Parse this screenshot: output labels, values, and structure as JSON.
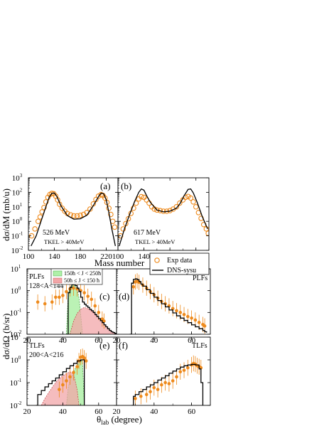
{
  "chart_data": [
    {
      "panel": "(a)",
      "type": "line",
      "xlim": [
        100,
        238
      ],
      "ylim_log10": [
        -2,
        3
      ],
      "ylabel": "dσ/dM (mb/u)",
      "xticks": [
        "100",
        "140",
        "180",
        "220"
      ],
      "yticks_exp": [
        "-2",
        "-1",
        "0",
        "1",
        "2",
        "3"
      ],
      "annotations": [
        "526 MeV",
        "TKEL > 40MeV"
      ],
      "series": [
        {
          "name": "DNS-sysu",
          "style": "line",
          "x": [
            104,
            112,
            120,
            128,
            132,
            136,
            140,
            144,
            150,
            160,
            170,
            180,
            190,
            200,
            208,
            212,
            216,
            220,
            224,
            228,
            234
          ],
          "y": [
            0.02,
            0.1,
            1.2,
            14,
            45,
            85,
            90,
            50,
            12,
            2.5,
            1.4,
            1.5,
            2.6,
            12,
            50,
            88,
            80,
            30,
            4,
            0.4,
            0.02
          ]
        },
        {
          "name": "Exp data",
          "style": "circle",
          "x": [
            105,
            110,
            115,
            118,
            121,
            124,
            127,
            130,
            133,
            136,
            139,
            142,
            145,
            148,
            152,
            156,
            160,
            165,
            170,
            175,
            180,
            185,
            190,
            195,
            200,
            204,
            208,
            212,
            215,
            218,
            221,
            224,
            227,
            230,
            233
          ],
          "y": [
            0.1,
            0.3,
            1.0,
            2.0,
            4.5,
            9,
            22,
            45,
            70,
            85,
            80,
            55,
            30,
            15,
            8,
            5,
            3.5,
            2.8,
            2.4,
            2.4,
            2.6,
            3,
            4,
            7,
            16,
            32,
            55,
            70,
            60,
            40,
            20,
            8,
            3,
            1.0,
            0.4
          ]
        }
      ]
    },
    {
      "panel": "(b)",
      "type": "line",
      "xlim": [
        100,
        240
      ],
      "ylim_log10": [
        -2,
        3
      ],
      "xticks": [
        "100",
        "140",
        "180",
        "220"
      ],
      "annotations": [
        "617 MeV",
        "TKEL > 40MeV"
      ],
      "series": [
        {
          "name": "DNS-sysu",
          "style": "line",
          "x": [
            102,
            110,
            118,
            126,
            132,
            136,
            140,
            144,
            150,
            160,
            170,
            180,
            190,
            196,
            202,
            208,
            212,
            216,
            222,
            230,
            238
          ],
          "y": [
            0.02,
            0.3,
            3,
            25,
            100,
            170,
            140,
            60,
            20,
            6,
            4.5,
            5,
            8,
            18,
            60,
            160,
            170,
            90,
            20,
            2,
            0.3
          ]
        },
        {
          "name": "Exp data",
          "style": "circle",
          "x": [
            104,
            108,
            112,
            116,
            120,
            124,
            128,
            132,
            136,
            140,
            144,
            148,
            152,
            156,
            160,
            165,
            170,
            175,
            180,
            185,
            190,
            195,
            200,
            204,
            208,
            212,
            216,
            220,
            224,
            228,
            232,
            236,
            239
          ],
          "y": [
            0.1,
            0.3,
            0.7,
            1.5,
            3.5,
            8,
            18,
            35,
            50,
            45,
            30,
            18,
            10,
            7,
            6,
            5.5,
            5,
            5,
            5.5,
            7,
            10,
            18,
            30,
            45,
            52,
            40,
            22,
            10,
            4,
            1.6,
            0.6,
            0.3,
            0.15
          ]
        }
      ]
    },
    {
      "panel": "(c)",
      "type": "area",
      "xlim": [
        20,
        70
      ],
      "ylim_log10": [
        -2,
        1
      ],
      "ylabel": "dσ/dΩ (b/sr)",
      "xticks": [
        "20",
        "40",
        "60"
      ],
      "yticks_exp": [
        "-2",
        "-1",
        "0",
        "1"
      ],
      "annotations": [
        "PLFs",
        "128<A<144"
      ],
      "series": [
        {
          "name": "DNS-sysu",
          "style": "step",
          "x": [
            42,
            43,
            44,
            45,
            46,
            47,
            48,
            49,
            50,
            51,
            52,
            53,
            54,
            55,
            56,
            57,
            58,
            59,
            60,
            61,
            62,
            63,
            64,
            65,
            66,
            67,
            68,
            69,
            70
          ],
          "y": [
            0.01,
            0.8,
            1.4,
            1.9,
            1.9,
            1.7,
            1.3,
            0.9,
            0.5,
            0.3,
            0.24,
            0.2,
            0.17,
            0.14,
            0.12,
            0.1,
            0.08,
            0.065,
            0.052,
            0.042,
            0.034,
            0.027,
            0.022,
            0.018,
            0.015,
            0.013,
            0.012,
            0.011,
            0.01
          ]
        },
        {
          "name": "150ħ < J < 250ħ",
          "style": "fill-green",
          "x": [
            42,
            43,
            44,
            45,
            46,
            47,
            48,
            49,
            50,
            51
          ],
          "y": [
            0.01,
            0.7,
            1.3,
            1.8,
            1.8,
            1.6,
            1.1,
            0.5,
            0.08,
            0.01
          ]
        },
        {
          "name": "50ħ ≤ J < 150 ħ",
          "style": "fill-red",
          "x": [
            44,
            46,
            48,
            50,
            52,
            54,
            56,
            58,
            60,
            62,
            64,
            66,
            68,
            70
          ],
          "y": [
            0.01,
            0.04,
            0.09,
            0.14,
            0.17,
            0.15,
            0.12,
            0.08,
            0.055,
            0.035,
            0.024,
            0.017,
            0.012,
            0.01
          ]
        },
        {
          "name": "Exp data",
          "style": "errorbar",
          "x": [
            26,
            30,
            34,
            36,
            38,
            40,
            42,
            44,
            46,
            48,
            50,
            52,
            54,
            56,
            58,
            60,
            62,
            63
          ],
          "y": [
            0.3,
            0.25,
            0.3,
            0.5,
            0.5,
            0.6,
            0.9,
            1.2,
            1.3,
            1.2,
            1.0,
            0.8,
            0.55,
            0.4,
            0.2,
            0.1,
            0.05,
            0.04
          ]
        }
      ]
    },
    {
      "panel": "(d)",
      "type": "area",
      "xlim": [
        20,
        70
      ],
      "ylim_log10": [
        -2,
        1
      ],
      "xticks": [
        "20",
        "40",
        "60"
      ],
      "annotations": [
        "PLFs"
      ],
      "series": [
        {
          "name": "DNS-sysu",
          "style": "step",
          "x": [
            27,
            28,
            29,
            30,
            31,
            32,
            33,
            34,
            36,
            38,
            40,
            42,
            44,
            46,
            48,
            50,
            52,
            54,
            56,
            58,
            60,
            62,
            64,
            66,
            67,
            68
          ],
          "y": [
            0.01,
            2.2,
            3.3,
            3.5,
            3.2,
            2.6,
            2.0,
            1.6,
            1.1,
            0.75,
            0.5,
            0.35,
            0.25,
            0.18,
            0.13,
            0.095,
            0.07,
            0.055,
            0.043,
            0.034,
            0.027,
            0.022,
            0.018,
            0.015,
            0.013,
            0.012
          ]
        },
        {
          "name": "Exp data",
          "style": "errorbar",
          "x": [
            29,
            30,
            31,
            32,
            34,
            36,
            38,
            40,
            42,
            44,
            46,
            48,
            50,
            52,
            54,
            56,
            58,
            60,
            62,
            64,
            66,
            67
          ],
          "y": [
            1.5,
            2.5,
            2.8,
            2.4,
            1.8,
            1.3,
            0.9,
            0.65,
            0.45,
            0.32,
            0.25,
            0.2,
            0.15,
            0.12,
            0.1,
            0.08,
            0.065,
            0.055,
            0.045,
            0.035,
            0.028,
            0.024
          ]
        }
      ]
    },
    {
      "panel": "(e)",
      "type": "area",
      "xlim": [
        20,
        70
      ],
      "ylim_log10": [
        -2,
        1
      ],
      "ylabel": "dσ/dΩ (b/sr)",
      "xticks": [
        "20",
        "40",
        "60"
      ],
      "yticks_exp": [
        "-2",
        "-1",
        "0",
        "1"
      ],
      "annotations": [
        "TLFs",
        "200<A<216"
      ],
      "series": [
        {
          "name": "DNS-sysu",
          "style": "step",
          "x": [
            25,
            26,
            28,
            30,
            32,
            34,
            36,
            38,
            40,
            42,
            44,
            46,
            48,
            50,
            51,
            52
          ],
          "y": [
            0.01,
            0.03,
            0.045,
            0.065,
            0.09,
            0.12,
            0.16,
            0.22,
            0.3,
            0.42,
            0.55,
            0.7,
            0.9,
            1.0,
            1.0,
            0.01
          ]
        },
        {
          "name": "150ħ < J < 250ħ",
          "style": "fill-green",
          "x": [
            42,
            43,
            44,
            46,
            48,
            50,
            51,
            52
          ],
          "y": [
            0.01,
            0.06,
            0.12,
            0.3,
            0.6,
            0.9,
            0.95,
            0.01
          ]
        },
        {
          "name": "50ħ ≤ J < 150 ħ",
          "style": "fill-red",
          "x": [
            28,
            30,
            32,
            34,
            36,
            38,
            40,
            42,
            44,
            46,
            48,
            49
          ],
          "y": [
            0.01,
            0.02,
            0.035,
            0.06,
            0.1,
            0.15,
            0.2,
            0.25,
            0.3,
            0.25,
            0.05,
            0.01
          ]
        },
        {
          "name": "Exp data",
          "style": "errorbar",
          "x": [
            38,
            40,
            42,
            44,
            46,
            48,
            49,
            50,
            51,
            52,
            53
          ],
          "y": [
            0.05,
            0.08,
            0.12,
            0.18,
            0.28,
            0.5,
            0.9,
            1.3,
            1.4,
            1.2,
            0.9
          ]
        }
      ]
    },
    {
      "panel": "(f)",
      "type": "area",
      "xlim": [
        20,
        70
      ],
      "ylim_log10": [
        -2,
        1
      ],
      "xticks": [
        "20",
        "40",
        "60"
      ],
      "annotations": [
        "TLFs"
      ],
      "series": [
        {
          "name": "DNS-sysu",
          "style": "step",
          "x": [
            28,
            29,
            30,
            32,
            34,
            36,
            38,
            40,
            42,
            44,
            46,
            48,
            50,
            52,
            54,
            56,
            58,
            60,
            62,
            64,
            65,
            66
          ],
          "y": [
            0.01,
            0.025,
            0.03,
            0.04,
            0.05,
            0.065,
            0.08,
            0.1,
            0.13,
            0.16,
            0.2,
            0.26,
            0.32,
            0.4,
            0.48,
            0.55,
            0.6,
            0.63,
            0.6,
            0.4,
            0.1,
            0.01
          ]
        },
        {
          "name": "Exp data",
          "style": "errorbar",
          "x": [
            30,
            33,
            36,
            38,
            40,
            42,
            44,
            46,
            48,
            50,
            52,
            54,
            56,
            58,
            60,
            61,
            62,
            63,
            64,
            65
          ],
          "y": [
            0.02,
            0.025,
            0.03,
            0.04,
            0.06,
            0.05,
            0.08,
            0.1,
            0.09,
            0.12,
            0.18,
            0.3,
            0.35,
            0.45,
            0.6,
            0.7,
            0.65,
            0.55,
            0.5,
            0.45
          ]
        }
      ]
    }
  ],
  "labels": {
    "panel_a": "(a)",
    "panel_b": "(b)",
    "panel_c": "(c)",
    "panel_d": "(d)",
    "panel_e": "(e)",
    "panel_f": "(f)",
    "ann_a1": "526 MeV",
    "ann_a2": "TKEL > 40MeV",
    "ann_b1": "617 MeV",
    "ann_b2": "TKEL > 40MeV",
    "ann_c1": "PLFs",
    "ann_c2": "128<A<144",
    "ann_d1": "PLFs",
    "ann_e1": "TLFs",
    "ann_e2": "200<A<216",
    "ann_f1": "TLFs",
    "ylabel_top": "dσ/dM (mb/u)",
    "ylabel_bottom": "dσ/dΩ (b/sr)",
    "xlabel_top": "Mass number",
    "xlabel_bottom_main": "θ",
    "xlabel_bottom_sub": "lab",
    "xlabel_bottom_unit": " (degree)",
    "legend_exp": "Exp data",
    "legend_dns": "DNS-sysu",
    "legend_green": "150ħ < J < 250ħ",
    "legend_red": "50ħ ≤ J < 150 ħ"
  },
  "colors": {
    "exp": "#ee8a1c",
    "green_fill": "#aff0a8",
    "red_fill": "#f2a6a8",
    "olive_overlap": "#c4b49a",
    "line": "#000000"
  }
}
